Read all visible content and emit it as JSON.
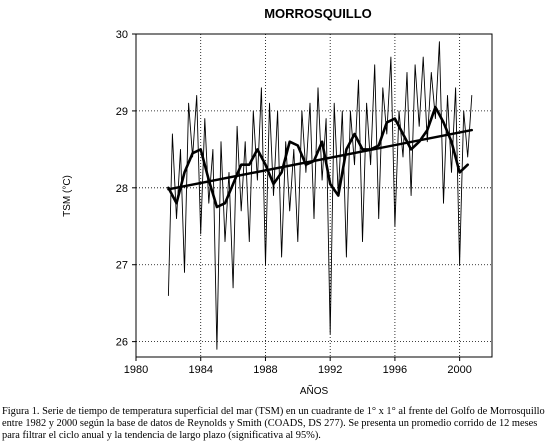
{
  "caption": "Figura 1. Serie de tiempo de temperatura superficial del mar (TSM) en un cuadrante de 1° x 1° al frente del Golfo de Morrosquillo entre 1982 y 2000 según la base de datos de Reynolds y Smith (COADS, DS 277). Se presenta un promedio corrido de 12 meses para filtrar el ciclo anual y la tendencia de largo plazo (significativa al 95%).",
  "colors": {
    "line": "#000000",
    "grid": "#000000",
    "background": "#ffffff"
  },
  "chart_data": {
    "type": "line",
    "title": "MORROSQUILLO",
    "xlabel": "AÑOS",
    "ylabel": "TSM (°C)",
    "xlim": [
      1980,
      2002
    ],
    "ylim": [
      25.8,
      30
    ],
    "xticks": [
      1980,
      1984,
      1988,
      1992,
      1996,
      2000
    ],
    "yticks": [
      26,
      27,
      28,
      29,
      30
    ],
    "grid": true,
    "series": [
      {
        "style": "thin",
        "x": [
          1982.0,
          1982.25,
          1982.5,
          1982.75,
          1983.0,
          1983.25,
          1983.5,
          1983.75,
          1984.0,
          1984.25,
          1984.5,
          1984.75,
          1985.0,
          1985.25,
          1985.5,
          1985.75,
          1986.0,
          1986.25,
          1986.5,
          1986.75,
          1987.0,
          1987.25,
          1987.5,
          1987.75,
          1988.0,
          1988.25,
          1988.5,
          1988.75,
          1989.0,
          1989.25,
          1989.5,
          1989.75,
          1990.0,
          1990.25,
          1990.5,
          1990.75,
          1991.0,
          1991.25,
          1991.5,
          1991.75,
          1992.0,
          1992.25,
          1992.5,
          1992.75,
          1993.0,
          1993.25,
          1993.5,
          1993.75,
          1994.0,
          1994.25,
          1994.5,
          1994.75,
          1995.0,
          1995.25,
          1995.5,
          1995.75,
          1996.0,
          1996.25,
          1996.5,
          1996.75,
          1997.0,
          1997.25,
          1997.5,
          1997.75,
          1998.0,
          1998.25,
          1998.5,
          1998.75,
          1999.0,
          1999.25,
          1999.5,
          1999.75,
          2000.0,
          2000.25,
          2000.5,
          2000.75
        ],
        "values": [
          26.6,
          28.7,
          27.6,
          28.5,
          26.9,
          29.1,
          28.4,
          29.2,
          27.4,
          28.9,
          27.8,
          28.5,
          25.9,
          28.6,
          27.3,
          28.2,
          26.7,
          28.8,
          27.7,
          28.6,
          27.3,
          29.0,
          28.1,
          29.3,
          27.0,
          29.1,
          27.9,
          29.0,
          27.1,
          28.6,
          27.7,
          28.5,
          27.3,
          29.0,
          28.2,
          29.1,
          27.6,
          29.3,
          28.1,
          28.9,
          26.1,
          29.1,
          27.9,
          29.0,
          27.1,
          29.0,
          28.3,
          29.4,
          27.3,
          29.1,
          28.3,
          29.6,
          27.6,
          29.3,
          28.7,
          29.7,
          27.5,
          29.0,
          28.4,
          29.5,
          27.9,
          29.6,
          28.8,
          29.7,
          28.6,
          29.5,
          28.9,
          29.9,
          27.8,
          29.2,
          28.2,
          29.3,
          27.0,
          29.0,
          28.4,
          29.2
        ]
      },
      {
        "style": "thick",
        "x": [
          1982.0,
          1982.5,
          1983.0,
          1983.5,
          1984.0,
          1984.5,
          1985.0,
          1985.5,
          1986.0,
          1986.5,
          1987.0,
          1987.5,
          1988.0,
          1988.5,
          1989.0,
          1989.5,
          1990.0,
          1990.5,
          1991.0,
          1991.5,
          1992.0,
          1992.5,
          1993.0,
          1993.5,
          1994.0,
          1994.5,
          1995.0,
          1995.5,
          1996.0,
          1996.5,
          1997.0,
          1997.5,
          1998.0,
          1998.5,
          1999.0,
          1999.5,
          2000.0,
          2000.5
        ],
        "values": [
          28.0,
          27.8,
          28.2,
          28.45,
          28.5,
          28.1,
          27.75,
          27.8,
          28.05,
          28.3,
          28.3,
          28.5,
          28.3,
          28.05,
          28.2,
          28.6,
          28.55,
          28.3,
          28.35,
          28.6,
          28.05,
          27.9,
          28.5,
          28.7,
          28.5,
          28.5,
          28.55,
          28.85,
          28.9,
          28.7,
          28.5,
          28.6,
          28.75,
          29.05,
          28.85,
          28.6,
          28.2,
          28.3
        ]
      },
      {
        "style": "trend",
        "x": [
          1982.0,
          2000.75
        ],
        "values": [
          27.98,
          28.75
        ]
      }
    ]
  }
}
